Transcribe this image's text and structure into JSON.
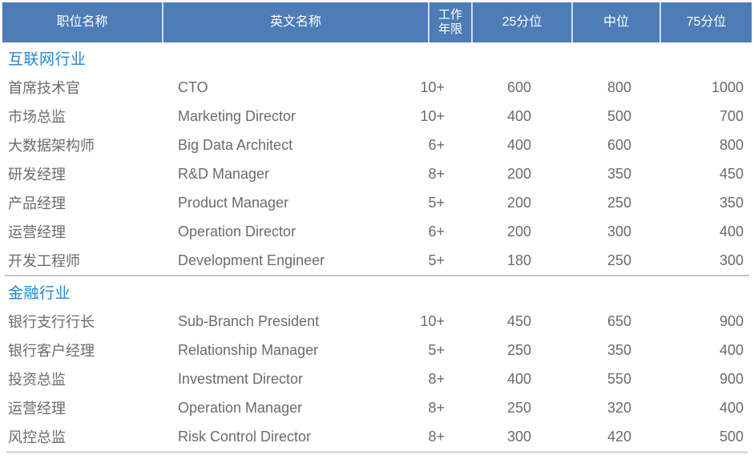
{
  "chart_data": {
    "type": "table",
    "columns": [
      "职位名称",
      "英文名称",
      "工作年限",
      "25分位",
      "中位",
      "75分位"
    ],
    "sections": [
      {
        "title": "互联网行业",
        "rows": [
          [
            "首席技术官",
            "CTO",
            "10+",
            600,
            800,
            1000
          ],
          [
            "市场总监",
            "Marketing Director",
            "10+",
            400,
            500,
            700
          ],
          [
            "大数据架构师",
            "Big Data Architect",
            "6+",
            400,
            600,
            800
          ],
          [
            "研发经理",
            "R&D Manager",
            "8+",
            200,
            350,
            450
          ],
          [
            "产品经理",
            "Product Manager",
            "5+",
            200,
            250,
            350
          ],
          [
            "运营经理",
            "Operation Director",
            "6+",
            200,
            300,
            400
          ],
          [
            "开发工程师",
            "Development Engineer",
            "5+",
            180,
            250,
            300
          ]
        ]
      },
      {
        "title": "金融行业",
        "rows": [
          [
            "银行支行行长",
            "Sub-Branch President",
            "10+",
            450,
            650,
            900
          ],
          [
            "银行客户经理",
            "Relationship Manager",
            "5+",
            250,
            350,
            400
          ],
          [
            "投资总监",
            "Investment Director",
            "8+",
            400,
            550,
            900
          ],
          [
            "运营经理",
            "Operation Manager",
            "8+",
            250,
            320,
            400
          ],
          [
            "风控总监",
            "Risk Control Director",
            "8+",
            300,
            420,
            500
          ]
        ]
      }
    ]
  },
  "colors": {
    "header_bg": "#4D7CB7",
    "header_text": "#FFFFFF",
    "section_title": "#2387D2",
    "body_text": "#6B6B6B",
    "divider_mid": "#C6C6C6",
    "divider_bottom": "#DDDDDD"
  }
}
